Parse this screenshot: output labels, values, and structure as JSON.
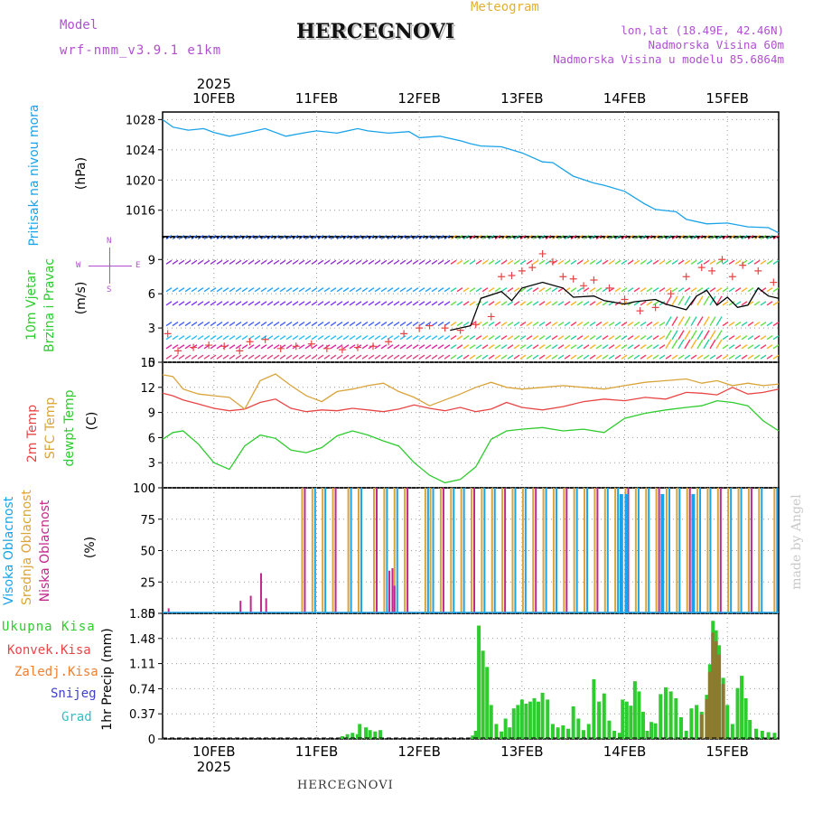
{
  "header": {
    "model_label": "Model",
    "model_value": "wrf-nmm_v3.9.1 e1km",
    "title": "HERCEGNOVI",
    "meteogram_label": "Meteogram",
    "lonlat": "lon,lat (18.49E, 42.46N)",
    "elevation": "Nadmorska Visina 60m",
    "model_elevation": "Nadmorska Visina u modelu 85.6864m"
  },
  "footer": {
    "station": "HERCEGNOVI",
    "watermark": "made by Angel"
  },
  "x_axis": {
    "year": "2025",
    "days": [
      "10FEB",
      "11FEB",
      "12FEB",
      "13FEB",
      "14FEB",
      "15FEB"
    ],
    "start_day_offset": -0.5,
    "end_day_offset": 5.5
  },
  "panels": {
    "pressure": {
      "label": "Pritisak na nivou mora",
      "unit": "(hPa)",
      "ticks": [
        "1016",
        "1020",
        "1024",
        "1028"
      ]
    },
    "wind": {
      "label_line1": "10m Vjetar",
      "label_line2": "Brzina i Pravac",
      "unit": "(m/s)",
      "compass_n": "N",
      "compass_s": "S",
      "compass_w": "W",
      "compass_e": "E",
      "ticks": [
        "0",
        "3",
        "6",
        "9"
      ]
    },
    "temp": {
      "label_2m": "2m Temp",
      "label_sfc": "SFC Temp",
      "label_dew": "dewpt Temp",
      "unit": "(C)",
      "ticks": [
        "0",
        "3",
        "6",
        "9",
        "12",
        "15"
      ]
    },
    "cloud": {
      "label_high": "Visoka Oblacnost",
      "label_mid": "Srednja Oblacnost",
      "label_low": "Niska Oblacnost",
      "unit": "(%)",
      "ticks": [
        "0",
        "25",
        "50",
        "75",
        "100"
      ]
    },
    "precip": {
      "legend_total": "Ukupna Kisa",
      "legend_conv": "Konvek.Kisa",
      "legend_frz": "Zaledj.Kisa",
      "legend_snow": "Snijeg",
      "legend_hail": "Grad",
      "unit": "1hr Precip (mm)",
      "ticks": [
        "0",
        "0.37",
        "0.74",
        "1.11",
        "1.48",
        "1.85"
      ]
    }
  },
  "colors": {
    "pressure": "#1aa3e8",
    "t2m": "#e84646",
    "tsfc": "#d9a43a",
    "dew": "#2ecc2e",
    "cloud_high": "#1aa3e8",
    "cloud_mid": "#d9a43a",
    "cloud_low": "#c0288a",
    "precip_total": "#2ecc2e",
    "precip_conv": "#e84646",
    "precip_frz": "#f08030",
    "precip_snow": "#4040d0",
    "precip_hail": "#30c0c0",
    "gust": "#e84646",
    "wind": "#000000",
    "model_label": "#b050d0",
    "meteogram": "#e0b030"
  },
  "chart_data": [
    {
      "type": "line",
      "name": "pressure",
      "xlabel": "",
      "ylabel": "Pritisak na nivou mora (hPa)",
      "ylim": [
        1012.5,
        1029
      ],
      "x_days": [
        -0.5,
        -0.4,
        -0.25,
        -0.1,
        0.0,
        0.15,
        0.3,
        0.5,
        0.7,
        0.9,
        1.0,
        1.2,
        1.4,
        1.5,
        1.7,
        1.9,
        2.0,
        2.2,
        2.4,
        2.5,
        2.6,
        2.8,
        3.0,
        3.2,
        3.3,
        3.5,
        3.7,
        3.8,
        4.0,
        4.2,
        4.3,
        4.5,
        4.6,
        4.8,
        5.0,
        5.2,
        5.4,
        5.5
      ],
      "values": [
        1028,
        1027,
        1026.6,
        1026.8,
        1026.3,
        1025.8,
        1026.2,
        1026.8,
        1025.8,
        1026.3,
        1026.5,
        1026.2,
        1026.8,
        1026.5,
        1026.2,
        1026.4,
        1025.6,
        1025.8,
        1025.2,
        1024.8,
        1024.5,
        1024.4,
        1023.6,
        1022.4,
        1022.3,
        1020.5,
        1019.6,
        1019.3,
        1018.5,
        1016.8,
        1016.1,
        1015.8,
        1014.8,
        1014.2,
        1014.3,
        1013.8,
        1013.7,
        1013.0
      ]
    },
    {
      "type": "line",
      "name": "wind_speed",
      "ylim": [
        0,
        11
      ],
      "x_days": [
        2.3,
        2.5,
        2.6,
        2.8,
        2.9,
        3.0,
        3.2,
        3.4,
        3.5,
        3.7,
        3.8,
        4.0,
        4.1,
        4.3,
        4.4,
        4.6,
        4.7,
        4.8,
        4.9,
        5.0,
        5.1,
        5.2,
        5.3,
        5.4,
        5.5
      ],
      "values": [
        2.8,
        3.2,
        5.6,
        6.2,
        5.4,
        6.5,
        7.0,
        6.5,
        5.7,
        5.8,
        5.4,
        5.1,
        5.3,
        5.5,
        5.1,
        4.6,
        5.8,
        6.3,
        5.0,
        5.7,
        4.8,
        5.0,
        6.5,
        5.8,
        5.6
      ]
    },
    {
      "type": "scatter",
      "name": "wind_gust",
      "ylim": [
        0,
        11
      ],
      "x_days": [
        -0.45,
        -0.35,
        -0.2,
        -0.05,
        0.1,
        0.25,
        0.35,
        0.5,
        0.65,
        0.8,
        0.95,
        1.1,
        1.25,
        1.4,
        1.55,
        1.7,
        1.85,
        2.0,
        2.1,
        2.25,
        2.4,
        2.55,
        2.7,
        2.8,
        2.9,
        3.0,
        3.1,
        3.2,
        3.3,
        3.4,
        3.5,
        3.6,
        3.7,
        3.85,
        4.0,
        4.15,
        4.3,
        4.45,
        4.6,
        4.75,
        4.85,
        4.95,
        5.05,
        5.15,
        5.3,
        5.45
      ],
      "values": [
        2.5,
        1.0,
        1.3,
        1.5,
        1.4,
        1.0,
        1.8,
        2.0,
        1.2,
        1.4,
        1.6,
        1.2,
        1.1,
        1.3,
        1.4,
        1.8,
        2.5,
        3.0,
        3.2,
        3.0,
        2.8,
        3.3,
        4.0,
        7.5,
        7.6,
        8.0,
        8.3,
        9.5,
        8.8,
        7.5,
        7.3,
        6.7,
        7.2,
        6.5,
        5.5,
        4.5,
        4.8,
        6.0,
        7.5,
        8.3,
        8.0,
        9.0,
        7.5,
        8.5,
        8.0,
        7.0
      ]
    },
    {
      "type": "line",
      "name": "temperature",
      "ylabel": "(C)",
      "ylim": [
        0,
        15
      ],
      "x_days": [
        -0.5,
        -0.4,
        -0.3,
        -0.15,
        0.0,
        0.15,
        0.3,
        0.45,
        0.6,
        0.75,
        0.9,
        1.05,
        1.2,
        1.35,
        1.5,
        1.65,
        1.8,
        1.95,
        2.1,
        2.25,
        2.4,
        2.55,
        2.7,
        2.85,
        3.0,
        3.2,
        3.4,
        3.6,
        3.8,
        4.0,
        4.2,
        4.4,
        4.6,
        4.75,
        4.9,
        5.05,
        5.2,
        5.35,
        5.5
      ],
      "series": [
        {
          "name": "2m Temp",
          "values": [
            11.3,
            11.0,
            10.5,
            10.0,
            9.5,
            9.2,
            9.4,
            10.2,
            10.6,
            9.5,
            9.1,
            9.3,
            9.2,
            9.5,
            9.3,
            9.1,
            9.4,
            9.9,
            9.5,
            9.2,
            9.6,
            9.1,
            9.4,
            10.2,
            9.6,
            9.3,
            9.7,
            10.3,
            10.6,
            10.4,
            10.8,
            10.6,
            11.4,
            11.3,
            11.1,
            12.0,
            11.2,
            11.4,
            11.8
          ]
        },
        {
          "name": "SFC Temp",
          "values": [
            13.5,
            13.3,
            11.8,
            11.2,
            11.0,
            10.8,
            9.4,
            12.8,
            13.6,
            12.2,
            11.0,
            10.3,
            11.5,
            11.8,
            12.2,
            12.5,
            11.5,
            10.8,
            9.8,
            10.5,
            11.2,
            12.0,
            12.6,
            12.0,
            11.8,
            12.0,
            12.2,
            12.0,
            11.8,
            12.2,
            12.6,
            12.8,
            13.0,
            12.5,
            12.8,
            12.2,
            12.5,
            12.2,
            12.4
          ]
        },
        {
          "name": "dewpt Temp",
          "values": [
            5.8,
            6.6,
            6.8,
            5.2,
            3.0,
            2.2,
            5.0,
            6.3,
            5.9,
            4.5,
            4.2,
            4.8,
            6.2,
            6.8,
            6.3,
            5.6,
            5.0,
            3.0,
            1.5,
            0.6,
            1.0,
            2.5,
            5.8,
            6.8,
            7.0,
            7.2,
            6.8,
            7.0,
            6.6,
            8.3,
            8.9,
            9.3,
            9.6,
            9.8,
            10.4,
            10.2,
            9.8,
            8.0,
            6.8
          ]
        }
      ]
    },
    {
      "type": "bar",
      "name": "cloud_cover",
      "ylabel": "(%)",
      "ylim": [
        0,
        100
      ],
      "series": [
        {
          "name": "Visoka Oblacnost",
          "values": []
        },
        {
          "name": "Srednja Oblacnost",
          "values": []
        },
        {
          "name": "Niska Oblacnost",
          "values": []
        }
      ],
      "x_days_hourly_start": -0.5,
      "overcast_mid_days": [
        0.85,
        0.95,
        1.05,
        1.15,
        1.3,
        1.4,
        1.55,
        1.65,
        1.75,
        1.85,
        2.05,
        2.1,
        2.2,
        2.3,
        2.4,
        2.5,
        2.6,
        2.7,
        2.8,
        2.9,
        3.0,
        3.1,
        3.2,
        3.3,
        3.4,
        3.5,
        3.6,
        3.7,
        3.8,
        3.9,
        4.0,
        4.1,
        4.2,
        4.3,
        4.4,
        4.5,
        4.6,
        4.7,
        4.8,
        4.9,
        5.0,
        5.1,
        5.2,
        5.3,
        5.45
      ],
      "sparse_low": [
        [
          -0.45,
          4
        ],
        [
          0.25,
          10
        ],
        [
          0.35,
          14
        ],
        [
          0.45,
          32
        ],
        [
          0.5,
          12
        ],
        [
          1.7,
          34
        ],
        [
          1.73,
          36
        ],
        [
          1.75,
          22
        ]
      ],
      "high_gap_days": [
        3.95,
        4.0,
        4.35,
        4.65
      ]
    },
    {
      "type": "bar",
      "name": "precipitation",
      "ylabel": "1hr Precip (mm)",
      "ylim": [
        0,
        1.85
      ],
      "x_days_hourly_start": -0.5,
      "series": [
        {
          "name": "Ukupna Kisa",
          "values": []
        },
        {
          "name": "Konvek.Kisa",
          "values": []
        }
      ],
      "precip_events": [
        [
          1.25,
          0.04
        ],
        [
          1.3,
          0.07
        ],
        [
          1.35,
          0.09
        ],
        [
          1.4,
          0.07
        ],
        [
          1.42,
          0.22
        ],
        [
          1.48,
          0.17
        ],
        [
          1.52,
          0.13
        ],
        [
          1.57,
          0.11
        ],
        [
          1.62,
          0.13
        ],
        [
          2.52,
          0.05
        ],
        [
          2.55,
          0.12
        ],
        [
          2.58,
          1.67
        ],
        [
          2.62,
          1.3
        ],
        [
          2.66,
          1.06
        ],
        [
          2.7,
          0.5
        ],
        [
          2.75,
          0.22
        ],
        [
          2.8,
          0.11
        ],
        [
          2.84,
          0.3
        ],
        [
          2.88,
          0.17
        ],
        [
          2.92,
          0.45
        ],
        [
          2.96,
          0.5
        ],
        [
          3.0,
          0.58
        ],
        [
          3.04,
          0.52
        ],
        [
          3.08,
          0.55
        ],
        [
          3.12,
          0.6
        ],
        [
          3.16,
          0.55
        ],
        [
          3.2,
          0.68
        ],
        [
          3.25,
          0.58
        ],
        [
          3.3,
          0.22
        ],
        [
          3.35,
          0.17
        ],
        [
          3.4,
          0.2
        ],
        [
          3.45,
          0.15
        ],
        [
          3.5,
          0.48
        ],
        [
          3.55,
          0.3
        ],
        [
          3.6,
          0.13
        ],
        [
          3.65,
          0.22
        ],
        [
          3.7,
          0.88
        ],
        [
          3.75,
          0.55
        ],
        [
          3.8,
          0.67
        ],
        [
          3.85,
          0.27
        ],
        [
          3.9,
          0.12
        ],
        [
          3.95,
          0.09
        ],
        [
          3.98,
          0.58
        ],
        [
          4.02,
          0.55
        ],
        [
          4.06,
          0.49
        ],
        [
          4.1,
          0.85
        ],
        [
          4.14,
          0.7
        ],
        [
          4.18,
          0.4
        ],
        [
          4.22,
          0.12
        ],
        [
          4.26,
          0.25
        ],
        [
          4.3,
          0.23
        ],
        [
          4.35,
          0.66
        ],
        [
          4.4,
          0.76
        ],
        [
          4.45,
          0.7
        ],
        [
          4.5,
          0.6
        ],
        [
          4.55,
          0.32
        ],
        [
          4.6,
          0.12
        ],
        [
          4.65,
          0.45
        ],
        [
          4.7,
          0.5
        ],
        [
          4.75,
          0.4
        ],
        [
          4.8,
          0.65
        ],
        [
          4.83,
          1.1
        ],
        [
          4.86,
          1.74
        ],
        [
          4.89,
          1.6
        ],
        [
          4.92,
          1.38
        ],
        [
          4.96,
          0.9
        ],
        [
          5.0,
          0.5
        ],
        [
          5.05,
          0.22
        ],
        [
          5.1,
          0.75
        ],
        [
          5.14,
          0.93
        ],
        [
          5.18,
          0.6
        ],
        [
          5.22,
          0.28
        ],
        [
          5.28,
          0.15
        ],
        [
          5.34,
          0.12
        ],
        [
          5.4,
          0.1
        ],
        [
          5.46,
          0.09
        ]
      ]
    }
  ]
}
